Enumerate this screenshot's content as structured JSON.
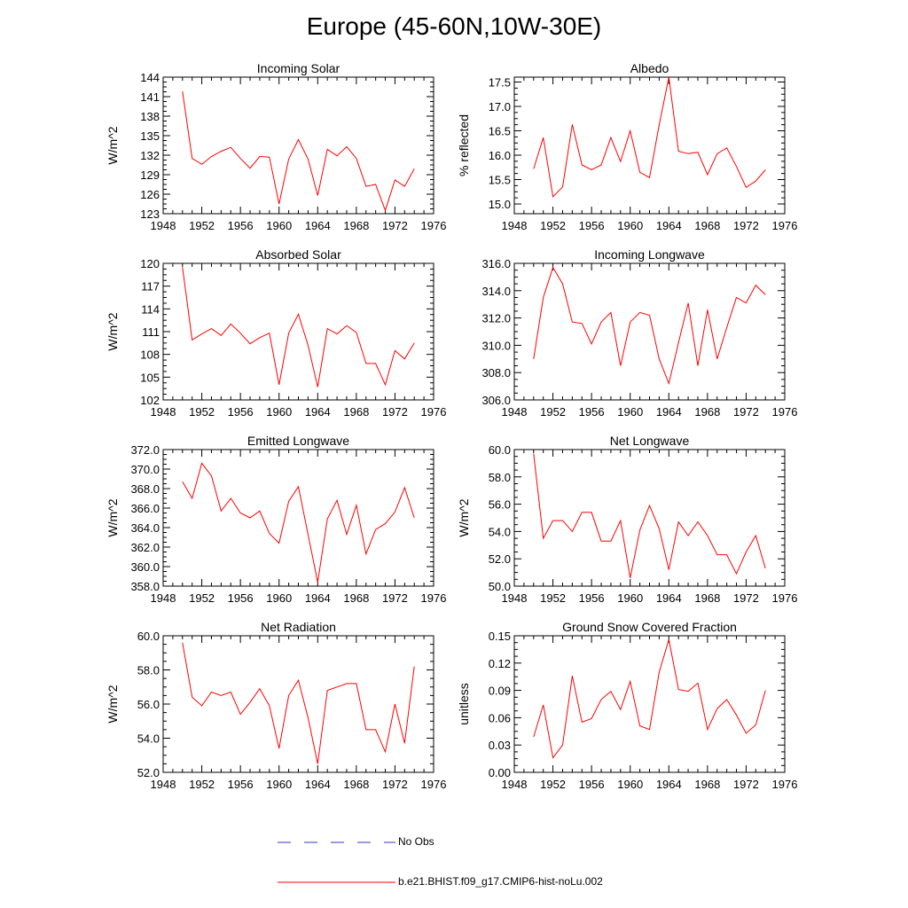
{
  "title": "Europe (45-60N,10W-30E)",
  "colors": {
    "model": "#ff0000",
    "obs": "#3333cc",
    "axis": "#000000"
  },
  "legend": {
    "obs_label": "No Obs",
    "model_label": "b.e21.BHIST.f09_g17.CMIP6-hist-noLu.002"
  },
  "chart_data": [
    {
      "type": "line",
      "title": "Incoming Solar",
      "ylabel": "W/m^2",
      "xlim": [
        1948,
        1976
      ],
      "xticks": [
        1948,
        1952,
        1956,
        1960,
        1964,
        1968,
        1972,
        1976
      ],
      "ylim": [
        123,
        144
      ],
      "yticks": [
        123,
        126,
        129,
        132,
        135,
        138,
        141,
        144
      ],
      "ytick_labels": [
        "123",
        "126",
        "129",
        "132",
        "135",
        "138",
        "141",
        "144"
      ],
      "x": [
        1950,
        1951,
        1952,
        1953,
        1954,
        1955,
        1956,
        1957,
        1958,
        1959,
        1960,
        1961,
        1962,
        1963,
        1964,
        1965,
        1966,
        1967,
        1968,
        1969,
        1970,
        1971,
        1972,
        1973,
        1974
      ],
      "values": [
        141.8,
        131.5,
        130.6,
        131.8,
        132.6,
        133.2,
        131.5,
        130.0,
        131.8,
        131.7,
        124.5,
        131.4,
        134.4,
        131.4,
        125.8,
        132.9,
        131.9,
        133.3,
        131.5,
        127.2,
        127.5,
        123.5,
        128.2,
        127.2,
        129.9
      ]
    },
    {
      "type": "line",
      "title": "Albedo",
      "ylabel": "% reflected",
      "xlim": [
        1948,
        1976
      ],
      "xticks": [
        1948,
        1952,
        1956,
        1960,
        1964,
        1968,
        1972,
        1976
      ],
      "ylim": [
        14.8,
        17.6
      ],
      "yticks": [
        15.0,
        15.5,
        16.0,
        16.5,
        17.0,
        17.5
      ],
      "ytick_labels": [
        "15.0",
        "15.5",
        "16.0",
        "16.5",
        "17.0",
        "17.5"
      ],
      "x": [
        1950,
        1951,
        1952,
        1953,
        1954,
        1955,
        1956,
        1957,
        1958,
        1959,
        1960,
        1961,
        1962,
        1963,
        1964,
        1965,
        1966,
        1967,
        1968,
        1969,
        1970,
        1971,
        1972,
        1973,
        1974
      ],
      "values": [
        15.72,
        16.36,
        15.15,
        15.35,
        16.63,
        15.8,
        15.7,
        15.8,
        16.36,
        15.87,
        16.5,
        15.65,
        15.54,
        16.62,
        17.6,
        16.08,
        16.03,
        16.06,
        15.6,
        16.03,
        16.15,
        15.77,
        15.34,
        15.47,
        15.7
      ]
    },
    {
      "type": "line",
      "title": "Absorbed Solar",
      "ylabel": "W/m^2",
      "xlim": [
        1948,
        1976
      ],
      "xticks": [
        1948,
        1952,
        1956,
        1960,
        1964,
        1968,
        1972,
        1976
      ],
      "ylim": [
        102,
        120
      ],
      "yticks": [
        102,
        105,
        108,
        111,
        114,
        117,
        120
      ],
      "ytick_labels": [
        "102",
        "105",
        "108",
        "111",
        "114",
        "117",
        "120"
      ],
      "x": [
        1950,
        1951,
        1952,
        1953,
        1954,
        1955,
        1956,
        1957,
        1958,
        1959,
        1960,
        1961,
        1962,
        1963,
        1964,
        1965,
        1966,
        1967,
        1968,
        1969,
        1970,
        1971,
        1972,
        1973,
        1974
      ],
      "values": [
        119.5,
        109.9,
        110.7,
        111.4,
        110.5,
        112.0,
        110.8,
        109.4,
        110.2,
        110.8,
        104.0,
        110.8,
        113.3,
        109.2,
        103.7,
        111.4,
        110.7,
        111.8,
        110.9,
        106.8,
        106.8,
        104.0,
        108.5,
        107.4,
        109.5
      ]
    },
    {
      "type": "line",
      "title": "Incoming Longwave",
      "ylabel": "",
      "xlim": [
        1948,
        1976
      ],
      "xticks": [
        1948,
        1952,
        1956,
        1960,
        1964,
        1968,
        1972,
        1976
      ],
      "ylim": [
        306,
        316
      ],
      "yticks": [
        306,
        308,
        310,
        312,
        314,
        316
      ],
      "ytick_labels": [
        "306.0",
        "308.0",
        "310.0",
        "312.0",
        "314.0",
        "316.0"
      ],
      "x": [
        1950,
        1951,
        1952,
        1953,
        1954,
        1955,
        1956,
        1957,
        1958,
        1959,
        1960,
        1961,
        1962,
        1963,
        1964,
        1965,
        1966,
        1967,
        1968,
        1969,
        1970,
        1971,
        1972,
        1973,
        1974
      ],
      "values": [
        309.0,
        313.5,
        315.7,
        314.5,
        311.7,
        311.6,
        310.1,
        311.7,
        312.4,
        308.5,
        311.7,
        312.4,
        312.2,
        309.0,
        307.2,
        310.2,
        313.1,
        308.5,
        312.6,
        309.0,
        311.3,
        313.5,
        313.1,
        314.4,
        313.7
      ]
    },
    {
      "type": "line",
      "title": "Emitted Longwave",
      "ylabel": "W/m^2",
      "xlim": [
        1948,
        1976
      ],
      "xticks": [
        1948,
        1952,
        1956,
        1960,
        1964,
        1968,
        1972,
        1976
      ],
      "ylim": [
        358,
        372
      ],
      "yticks": [
        358,
        360,
        362,
        364,
        366,
        368,
        370,
        372
      ],
      "ytick_labels": [
        "358.0",
        "360.0",
        "362.0",
        "364.0",
        "366.0",
        "368.0",
        "370.0",
        "372.0"
      ],
      "x": [
        1950,
        1951,
        1952,
        1953,
        1954,
        1955,
        1956,
        1957,
        1958,
        1959,
        1960,
        1961,
        1962,
        1963,
        1964,
        1965,
        1966,
        1967,
        1968,
        1969,
        1970,
        1971,
        1972,
        1973,
        1974
      ],
      "values": [
        368.7,
        367.0,
        370.6,
        369.3,
        365.7,
        367.0,
        365.5,
        365.0,
        365.7,
        363.4,
        362.4,
        366.7,
        368.2,
        363.3,
        358.4,
        364.9,
        366.8,
        363.3,
        366.3,
        361.3,
        363.8,
        364.4,
        365.6,
        368.1,
        365.0
      ]
    },
    {
      "type": "line",
      "title": "Net Longwave",
      "ylabel": "W/m^2",
      "xlim": [
        1948,
        1976
      ],
      "xticks": [
        1948,
        1952,
        1956,
        1960,
        1964,
        1968,
        1972,
        1976
      ],
      "ylim": [
        50,
        60
      ],
      "yticks": [
        50,
        52,
        54,
        56,
        58,
        60
      ],
      "ytick_labels": [
        "50.0",
        "52.0",
        "54.0",
        "56.0",
        "58.0",
        "60.0"
      ],
      "x": [
        1950,
        1951,
        1952,
        1953,
        1954,
        1955,
        1956,
        1957,
        1958,
        1959,
        1960,
        1961,
        1962,
        1963,
        1964,
        1965,
        1966,
        1967,
        1968,
        1969,
        1970,
        1971,
        1972,
        1973,
        1974
      ],
      "values": [
        59.7,
        53.5,
        54.8,
        54.8,
        54.0,
        55.4,
        55.4,
        53.3,
        53.3,
        54.8,
        50.6,
        54.1,
        55.9,
        54.2,
        51.2,
        54.7,
        53.7,
        54.7,
        53.7,
        52.3,
        52.3,
        50.9,
        52.5,
        53.7,
        51.3
      ]
    },
    {
      "type": "line",
      "title": "Net Radiation",
      "ylabel": "W/m^2",
      "xlim": [
        1948,
        1976
      ],
      "xticks": [
        1948,
        1952,
        1956,
        1960,
        1964,
        1968,
        1972,
        1976
      ],
      "ylim": [
        52,
        60
      ],
      "yticks": [
        52,
        54,
        56,
        58,
        60
      ],
      "ytick_labels": [
        "52.0",
        "54.0",
        "56.0",
        "58.0",
        "60.0"
      ],
      "x": [
        1950,
        1951,
        1952,
        1953,
        1954,
        1955,
        1956,
        1957,
        1958,
        1959,
        1960,
        1961,
        1962,
        1963,
        1964,
        1965,
        1966,
        1967,
        1968,
        1969,
        1970,
        1971,
        1972,
        1973,
        1974
      ],
      "values": [
        59.6,
        56.4,
        55.9,
        56.7,
        56.5,
        56.7,
        55.4,
        56.1,
        56.9,
        55.9,
        53.4,
        56.5,
        57.4,
        55.2,
        52.5,
        56.8,
        57.0,
        57.2,
        57.2,
        54.5,
        54.5,
        53.2,
        56.0,
        53.7,
        58.2
      ]
    },
    {
      "type": "line",
      "title": "Ground Snow Covered Fraction",
      "ylabel": "unitless",
      "xlim": [
        1948,
        1976
      ],
      "xticks": [
        1948,
        1952,
        1956,
        1960,
        1964,
        1968,
        1972,
        1976
      ],
      "ylim": [
        0,
        0.15
      ],
      "yticks": [
        0,
        0.03,
        0.06,
        0.09,
        0.12,
        0.15
      ],
      "ytick_labels": [
        "0.00",
        "0.03",
        "0.06",
        "0.09",
        "0.12",
        "0.15"
      ],
      "x": [
        1950,
        1951,
        1952,
        1953,
        1954,
        1955,
        1956,
        1957,
        1958,
        1959,
        1960,
        1961,
        1962,
        1963,
        1964,
        1965,
        1966,
        1967,
        1968,
        1969,
        1970,
        1971,
        1972,
        1973,
        1974
      ],
      "values": [
        0.039,
        0.074,
        0.016,
        0.03,
        0.106,
        0.055,
        0.059,
        0.08,
        0.089,
        0.069,
        0.1,
        0.051,
        0.047,
        0.11,
        0.146,
        0.091,
        0.089,
        0.098,
        0.047,
        0.07,
        0.08,
        0.063,
        0.043,
        0.052,
        0.09
      ]
    }
  ]
}
